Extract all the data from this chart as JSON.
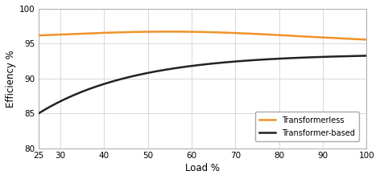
{
  "title": "",
  "xlabel": "Load %",
  "ylabel": "Efficiency %",
  "xlim": [
    25,
    100
  ],
  "ylim": [
    80,
    100
  ],
  "xticks": [
    25,
    30,
    40,
    50,
    60,
    70,
    80,
    90,
    100
  ],
  "yticks": [
    80,
    85,
    90,
    95,
    100
  ],
  "transformerless_color": "#f0922b",
  "transformer_based_color": "#222222",
  "line_width": 1.8,
  "legend_labels": [
    "Transformerless",
    "Transformer-based"
  ],
  "background_color": "#ffffff",
  "grid_color": "#d8d8d8",
  "axis_bg": "#ffffff"
}
